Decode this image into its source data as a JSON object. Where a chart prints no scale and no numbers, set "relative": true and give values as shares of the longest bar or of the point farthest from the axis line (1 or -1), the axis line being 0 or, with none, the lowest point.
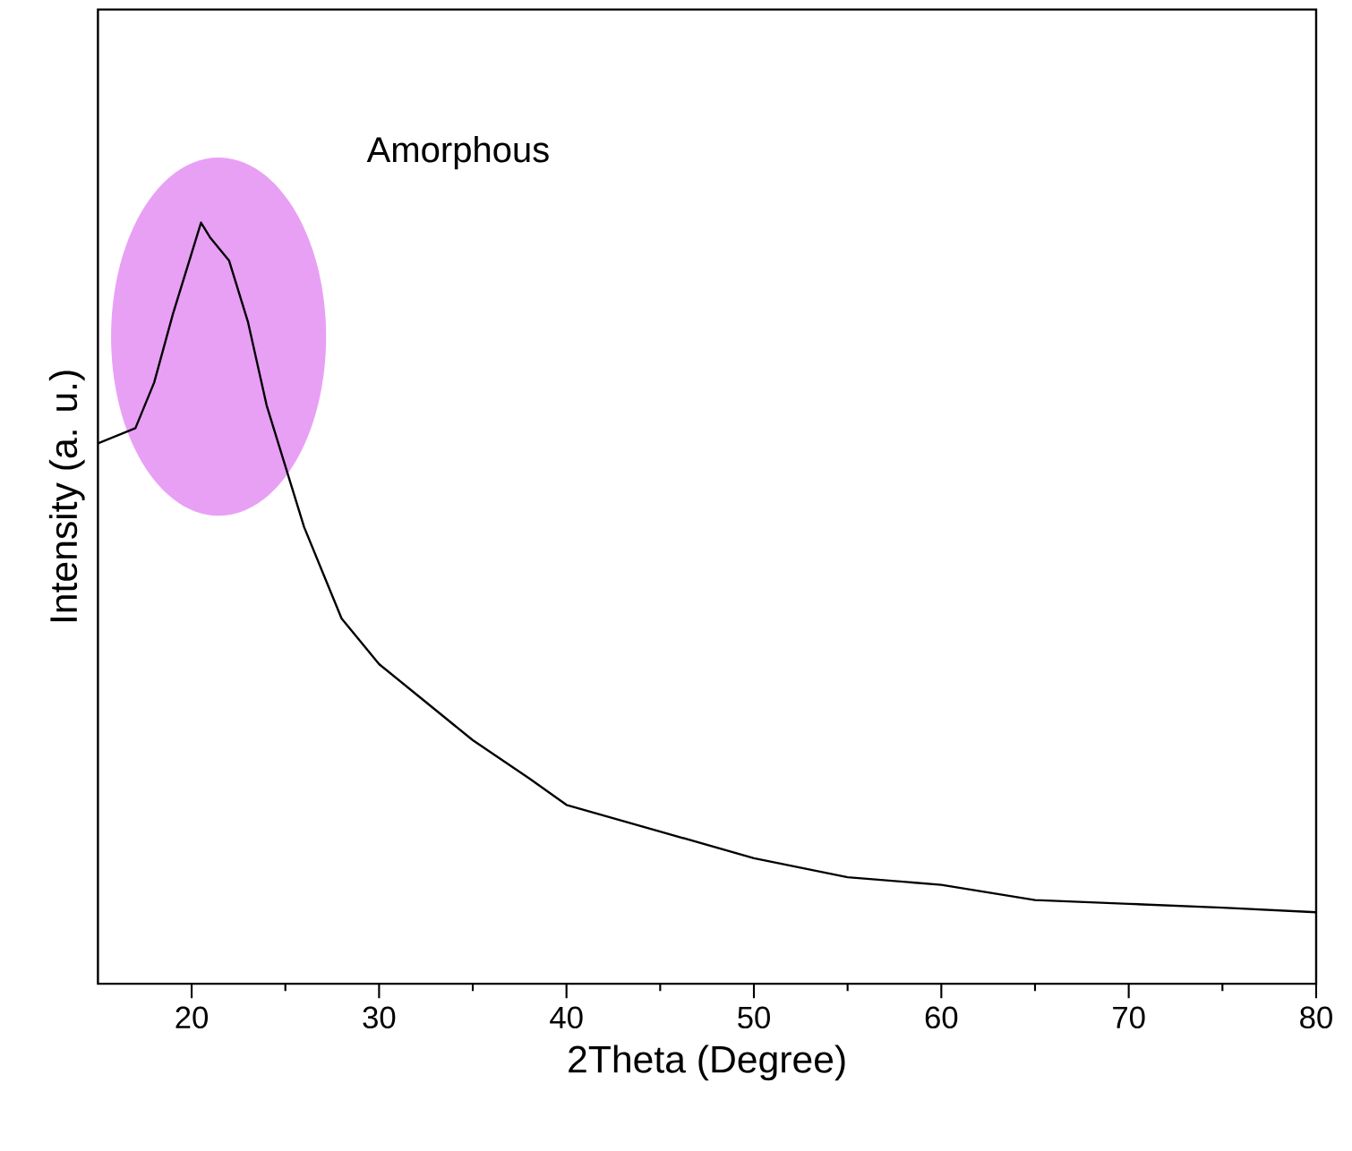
{
  "chart_data": {
    "type": "line",
    "xlabel": "2Theta (Degree)",
    "ylabel": "Intensity (a. u.)",
    "relative": true,
    "xlim": [
      15,
      80
    ],
    "xticks": [
      20,
      30,
      40,
      50,
      60,
      70,
      80
    ],
    "tick_labels": "x",
    "x": [
      15,
      16,
      17,
      18,
      19,
      20,
      20.5,
      21,
      22,
      23,
      24,
      25,
      26,
      27,
      28,
      30,
      32,
      35,
      38,
      40,
      45,
      50,
      55,
      60,
      65,
      70,
      75,
      80
    ],
    "series": [
      {
        "color": "#000000",
        "values": [
          0.71,
          0.72,
          0.73,
          0.79,
          0.88,
          0.96,
          1.0,
          0.98,
          0.95,
          0.87,
          0.76,
          0.68,
          0.6,
          0.54,
          0.48,
          0.42,
          0.38,
          0.32,
          0.27,
          0.235,
          0.2,
          0.165,
          0.14,
          0.13,
          0.11,
          0.105,
          0.1,
          0.094
        ]
      }
    ],
    "annotations": [
      "Amorphous"
    ]
  }
}
